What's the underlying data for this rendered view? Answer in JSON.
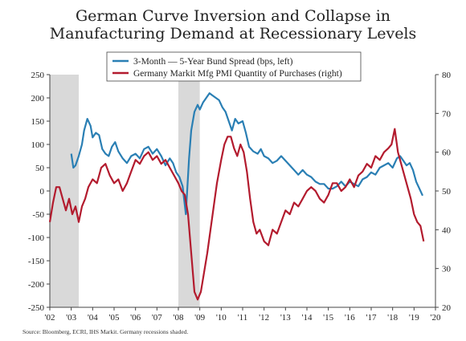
{
  "chart_data": {
    "type": "line",
    "title": "German Curve Inversion and Collapse in",
    "subtitle": "Manufacturing Demand at Recessionary Levels",
    "source": "Source: Bloomberg, ECRI, IHS Markit. Germany recessions shaded.",
    "x_ticks": [
      "'02",
      "'03",
      "'04",
      "'05",
      "'06",
      "'07",
      "'08",
      "'09",
      "'10",
      "'11",
      "'12",
      "'13",
      "'14",
      "'15",
      "'16",
      "'17",
      "'18",
      "'19",
      "'20"
    ],
    "xlim": [
      2002,
      2020
    ],
    "y_left": {
      "ylim": [
        -250,
        250
      ],
      "ticks": [
        "250",
        "200",
        "150",
        "100",
        "50",
        "0",
        "-50",
        "-100",
        "-150",
        "-200",
        "-250"
      ]
    },
    "y_right": {
      "ylim": [
        20,
        80
      ],
      "ticks": [
        "80",
        "70",
        "60",
        "50",
        "40",
        "30",
        "20"
      ]
    },
    "recessions": [
      [
        2002.0,
        2003.35
      ],
      [
        2008.0,
        2009.0
      ]
    ],
    "series": [
      {
        "name": "3-Month — 5-Year Bund Spread (bps, left)",
        "color": "#2a7fb4",
        "axis": "left",
        "x": [
          2003.0,
          2003.1,
          2003.2,
          2003.35,
          2003.5,
          2003.6,
          2003.75,
          2003.9,
          2004.0,
          2004.15,
          2004.3,
          2004.45,
          2004.6,
          2004.75,
          2004.9,
          2005.05,
          2005.2,
          2005.4,
          2005.6,
          2005.8,
          2006.0,
          2006.2,
          2006.4,
          2006.6,
          2006.8,
          2007.0,
          2007.2,
          2007.4,
          2007.6,
          2007.75,
          2007.9,
          2008.05,
          2008.2,
          2008.35,
          2008.5,
          2008.6,
          2008.75,
          2008.9,
          2009.0,
          2009.15,
          2009.3,
          2009.45,
          2009.6,
          2009.75,
          2009.9,
          2010.05,
          2010.2,
          2010.35,
          2010.5,
          2010.65,
          2010.8,
          2011.0,
          2011.15,
          2011.3,
          2011.5,
          2011.7,
          2011.85,
          2012.0,
          2012.2,
          2012.4,
          2012.6,
          2012.8,
          2013.0,
          2013.2,
          2013.4,
          2013.6,
          2013.8,
          2014.0,
          2014.2,
          2014.4,
          2014.6,
          2014.8,
          2015.0,
          2015.2,
          2015.4,
          2015.6,
          2015.8,
          2016.0,
          2016.2,
          2016.4,
          2016.6,
          2016.8,
          2017.0,
          2017.2,
          2017.4,
          2017.6,
          2017.8,
          2018.0,
          2018.2,
          2018.35,
          2018.5,
          2018.65,
          2018.8,
          2018.95,
          2019.1,
          2019.25,
          2019.4
        ],
        "y": [
          80,
          50,
          55,
          75,
          100,
          130,
          155,
          140,
          115,
          125,
          120,
          90,
          80,
          75,
          95,
          105,
          85,
          70,
          60,
          75,
          80,
          70,
          90,
          95,
          80,
          90,
          75,
          55,
          70,
          60,
          40,
          30,
          10,
          -50,
          70,
          130,
          170,
          185,
          175,
          190,
          200,
          210,
          205,
          200,
          195,
          180,
          170,
          150,
          130,
          155,
          145,
          150,
          125,
          95,
          85,
          80,
          90,
          75,
          70,
          60,
          65,
          75,
          65,
          55,
          45,
          35,
          45,
          35,
          30,
          20,
          15,
          15,
          5,
          5,
          10,
          20,
          10,
          20,
          15,
          10,
          25,
          30,
          40,
          35,
          50,
          55,
          60,
          50,
          70,
          75,
          65,
          55,
          60,
          45,
          20,
          5,
          -10
        ]
      },
      {
        "name": "Germany Markit Mfg PMI Quantity of Purchases (right)",
        "color": "#b31b2e",
        "axis": "right",
        "x": [
          2002.0,
          2002.15,
          2002.3,
          2002.45,
          2002.6,
          2002.75,
          2002.9,
          2003.05,
          2003.2,
          2003.35,
          2003.5,
          2003.65,
          2003.8,
          2004.0,
          2004.2,
          2004.4,
          2004.6,
          2004.8,
          2005.0,
          2005.2,
          2005.4,
          2005.6,
          2005.8,
          2006.0,
          2006.2,
          2006.4,
          2006.6,
          2006.8,
          2007.0,
          2007.2,
          2007.4,
          2007.6,
          2007.8,
          2008.0,
          2008.15,
          2008.3,
          2008.45,
          2008.6,
          2008.75,
          2008.9,
          2009.05,
          2009.2,
          2009.35,
          2009.5,
          2009.65,
          2009.8,
          2010.0,
          2010.15,
          2010.3,
          2010.45,
          2010.6,
          2010.75,
          2010.9,
          2011.05,
          2011.2,
          2011.35,
          2011.5,
          2011.65,
          2011.8,
          2012.0,
          2012.2,
          2012.4,
          2012.6,
          2012.8,
          2013.0,
          2013.2,
          2013.4,
          2013.6,
          2013.8,
          2014.0,
          2014.2,
          2014.4,
          2014.6,
          2014.8,
          2015.0,
          2015.2,
          2015.4,
          2015.6,
          2015.8,
          2016.0,
          2016.2,
          2016.4,
          2016.6,
          2016.8,
          2017.0,
          2017.2,
          2017.4,
          2017.6,
          2017.8,
          2017.95,
          2018.1,
          2018.25,
          2018.4,
          2018.55,
          2018.7,
          2018.85,
          2019.0,
          2019.15,
          2019.3,
          2019.45
        ],
        "y": [
          42,
          47,
          51,
          51,
          48,
          45,
          48,
          44,
          46,
          42,
          46,
          48,
          51,
          53,
          52,
          56,
          57,
          54,
          52,
          53,
          50,
          52,
          55,
          58,
          57,
          59,
          60,
          58,
          59,
          57,
          58,
          56,
          54,
          52,
          50,
          49,
          44,
          34,
          24,
          22,
          24,
          29,
          34,
          40,
          46,
          52,
          58,
          62,
          64,
          64,
          61,
          59,
          62,
          60,
          55,
          48,
          42,
          39,
          40,
          37,
          36,
          40,
          39,
          42,
          45,
          44,
          47,
          46,
          48,
          50,
          51,
          50,
          48,
          47,
          49,
          52,
          52,
          50,
          51,
          53,
          51,
          54,
          55,
          57,
          56,
          59,
          58,
          60,
          61,
          62,
          66,
          60,
          57,
          54,
          51,
          48,
          44,
          42,
          41,
          37
        ]
      }
    ]
  }
}
